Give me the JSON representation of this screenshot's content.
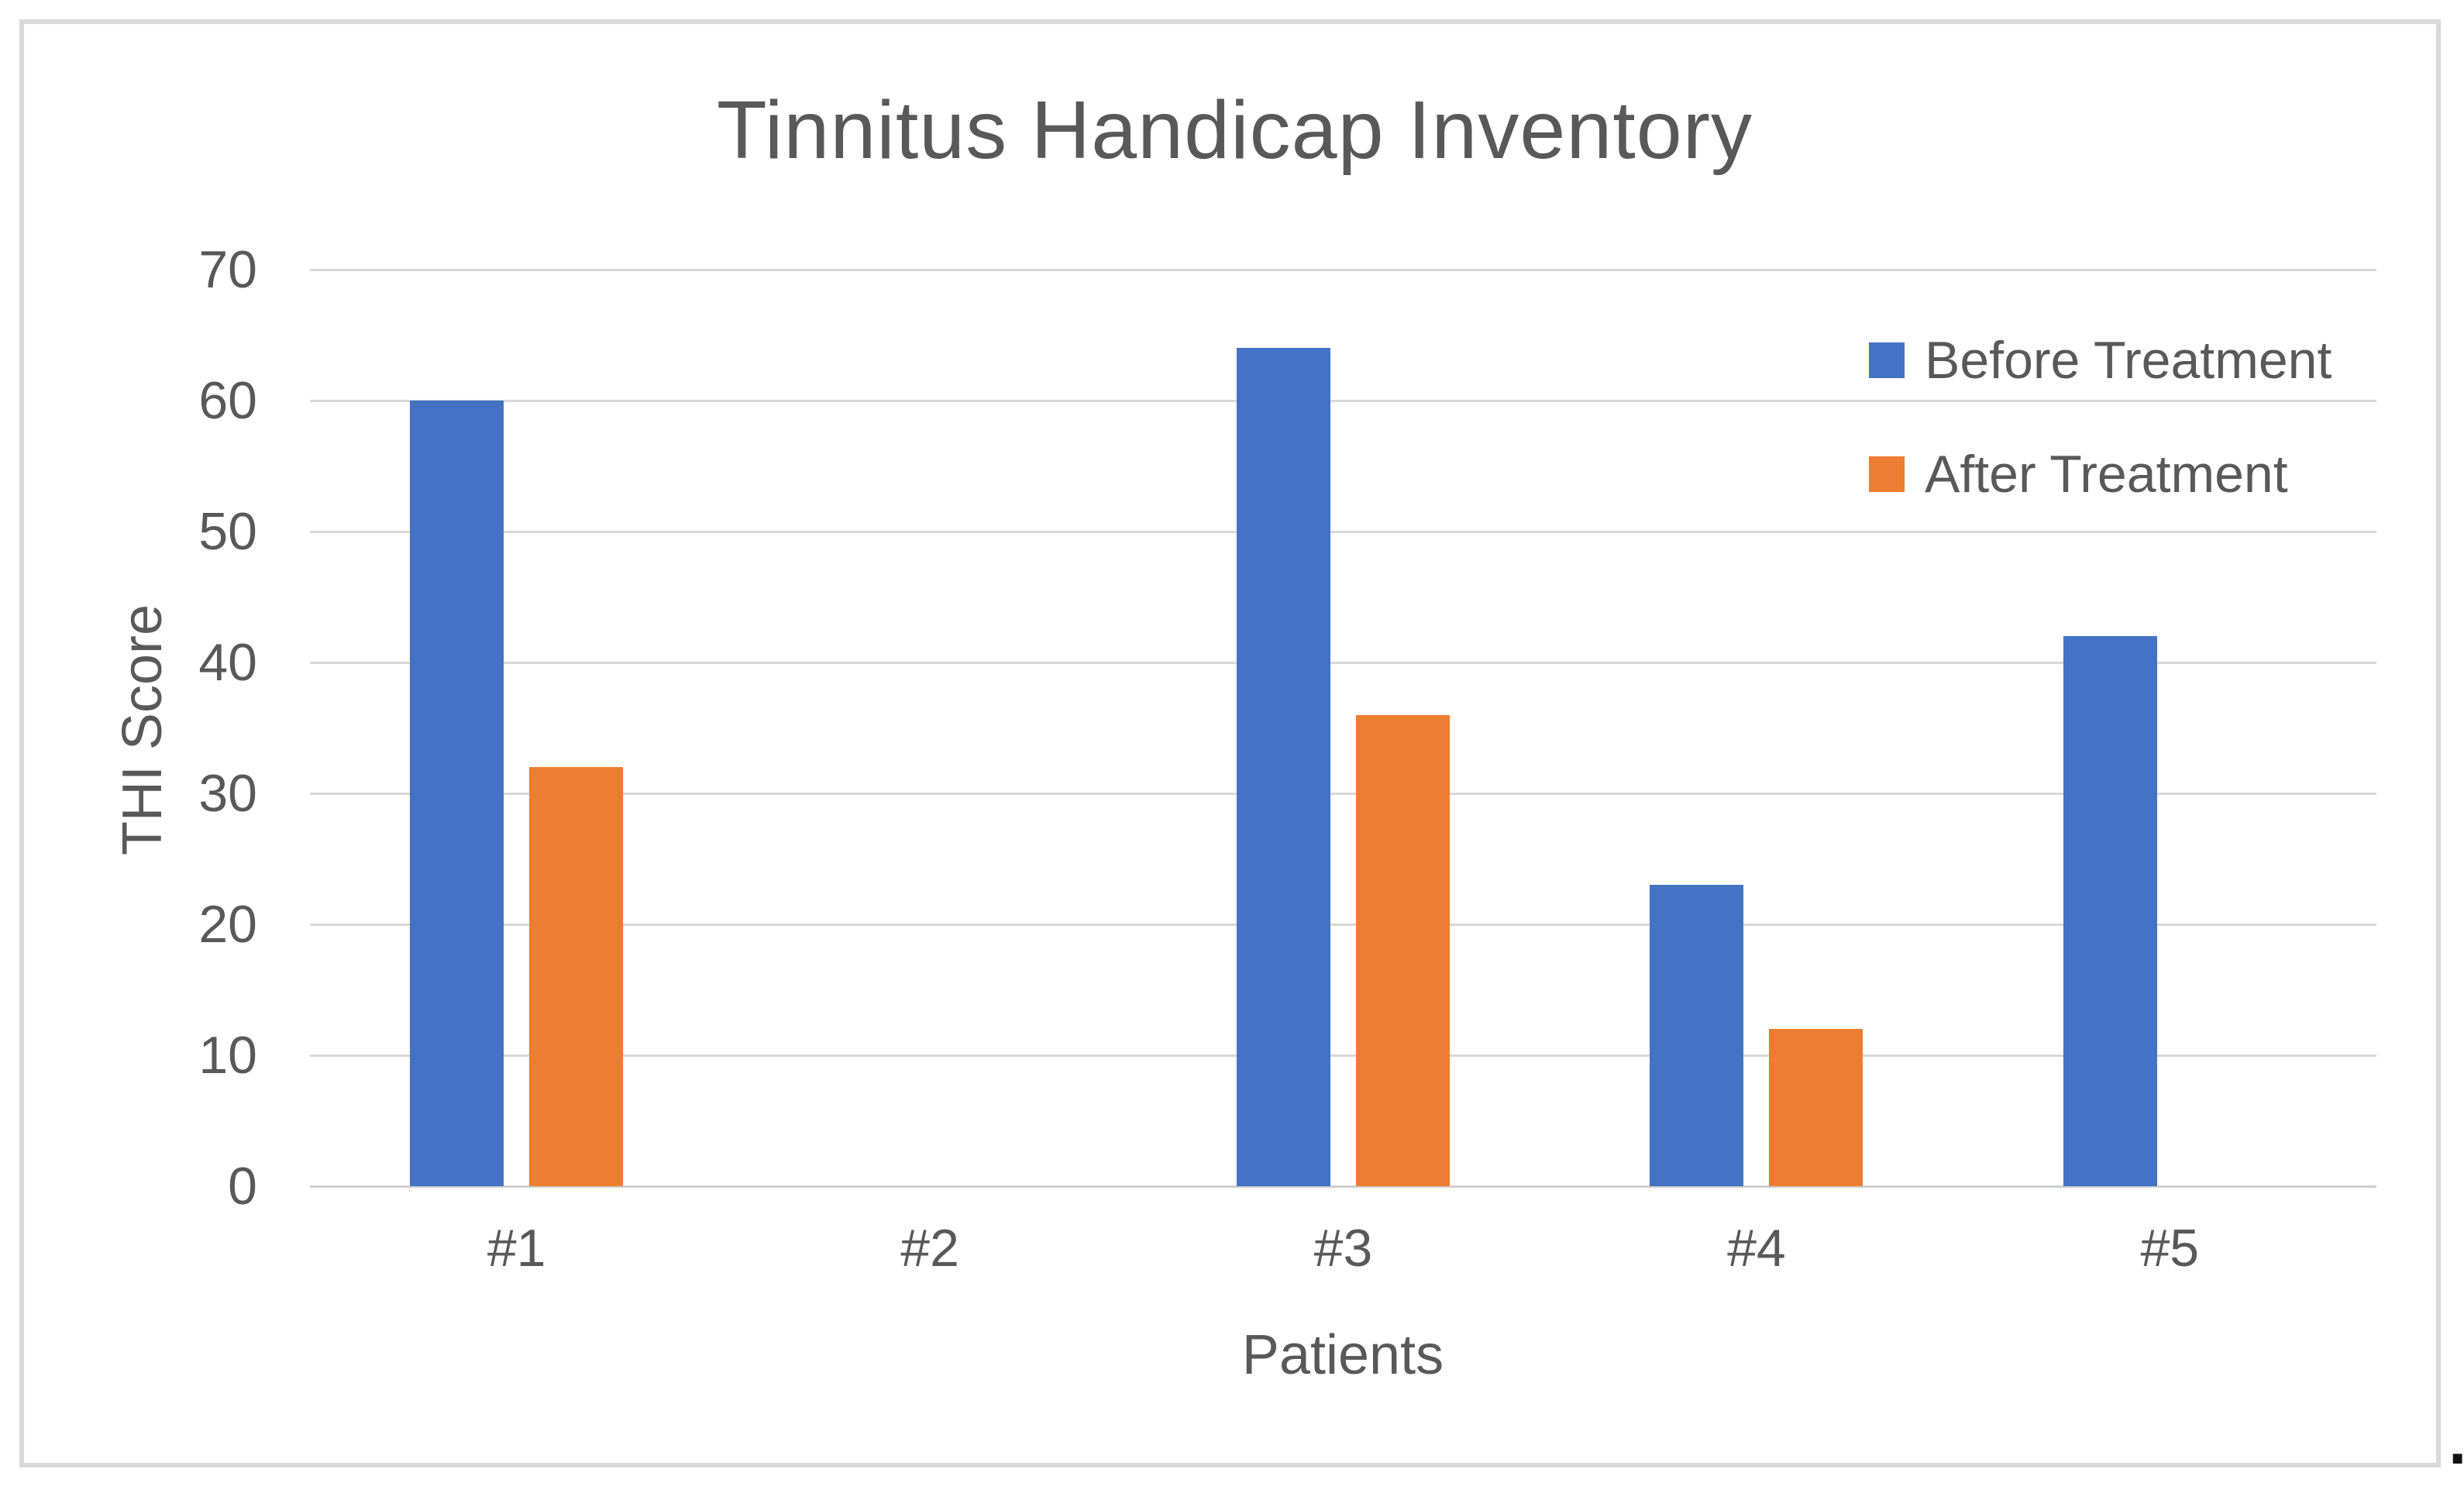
{
  "chart_data": {
    "type": "bar",
    "title": "Tinnitus Handicap Inventory",
    "xlabel": "Patients",
    "ylabel": "THI Score",
    "categories": [
      "#1",
      "#2",
      "#3",
      "#4",
      "#5"
    ],
    "series": [
      {
        "name": "Before Treatment",
        "color": "#4472C4",
        "values": [
          60,
          0,
          64,
          23,
          42
        ]
      },
      {
        "name": "After Treatment",
        "color": "#ED7D31",
        "values": [
          32,
          0,
          36,
          12,
          0
        ]
      }
    ],
    "ylim": [
      0,
      70
    ],
    "yticks": [
      0,
      10,
      20,
      30,
      40,
      50,
      60,
      70
    ],
    "grid": true,
    "legend_position": "top-right",
    "colors": {
      "text": "#595959",
      "gridline": "#d9d9d9",
      "frame_border": "#d9d9d9",
      "background": "#ffffff"
    }
  },
  "page": {
    "trailing_period": "."
  }
}
